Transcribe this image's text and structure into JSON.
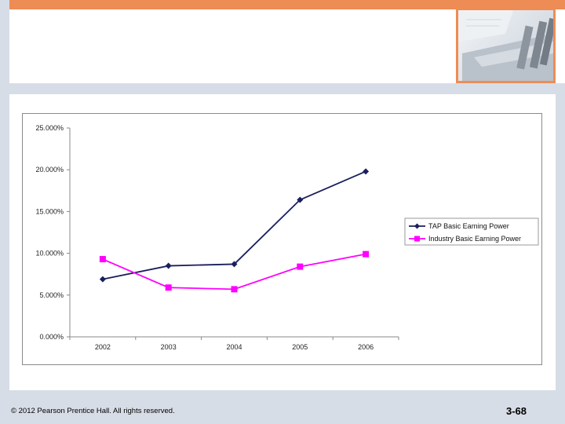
{
  "slide": {
    "footer": "© 2012 Pearson Prentice Hall. All rights reserved.",
    "page_number": "3-68",
    "accent_color": "#ee8c55",
    "band_color": "#d7dde6"
  },
  "chart_data": {
    "type": "line",
    "title": "",
    "xlabel": "",
    "ylabel": "",
    "categories": [
      "2002",
      "2003",
      "2004",
      "2005",
      "2006"
    ],
    "ylim": [
      0,
      25
    ],
    "yticks": [
      "0.000%",
      "5.000%",
      "10.000%",
      "15.000%",
      "20.000%",
      "25.000%"
    ],
    "grid": false,
    "legend_position": "right",
    "series": [
      {
        "name": "TAP Basic Earning Power",
        "values": [
          6.9,
          8.5,
          8.7,
          16.4,
          19.8
        ],
        "color": "#1a1f5e",
        "marker": "diamond"
      },
      {
        "name": "Industry Basic Earning Power",
        "values": [
          9.3,
          5.9,
          5.7,
          8.4,
          9.9
        ],
        "color": "#ff00ff",
        "marker": "square"
      }
    ]
  }
}
